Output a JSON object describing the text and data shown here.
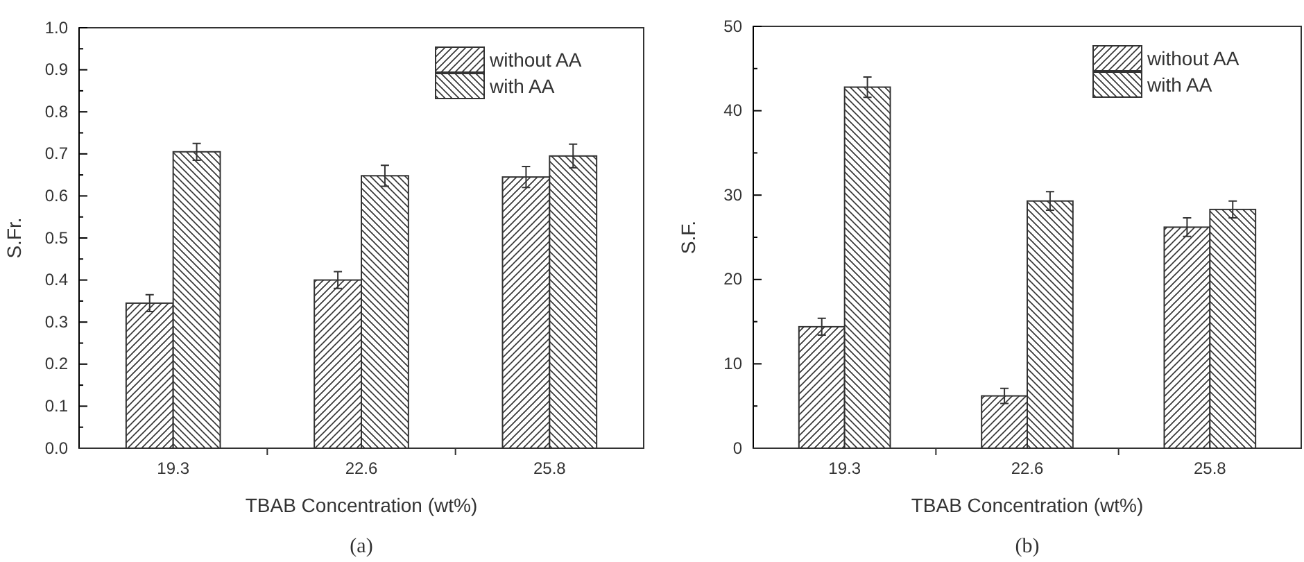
{
  "chart_data": [
    {
      "type": "bar",
      "xlabel": "TBAB Concentration (wt%)",
      "ylabel": "S.Fr.",
      "categories": [
        "19.3",
        "22.6",
        "25.8"
      ],
      "ylim": [
        0,
        1
      ],
      "yticks": [
        {
          "value": 0,
          "label": "0.0"
        },
        {
          "value": 0.05,
          "label": null
        },
        {
          "value": 0.1,
          "label": "0.1"
        },
        {
          "value": 0.15,
          "label": null
        },
        {
          "value": 0.2,
          "label": "0.2"
        },
        {
          "value": 0.25,
          "label": null
        },
        {
          "value": 0.3,
          "label": "0.3"
        },
        {
          "value": 0.35,
          "label": null
        },
        {
          "value": 0.4,
          "label": "0.4"
        },
        {
          "value": 0.45,
          "label": null
        },
        {
          "value": 0.5,
          "label": "0.5"
        },
        {
          "value": 0.55,
          "label": null
        },
        {
          "value": 0.6,
          "label": "0.6"
        },
        {
          "value": 0.65,
          "label": null
        },
        {
          "value": 0.7,
          "label": "0.7"
        },
        {
          "value": 0.75,
          "label": null
        },
        {
          "value": 0.8,
          "label": "0.8"
        },
        {
          "value": 0.85,
          "label": null
        },
        {
          "value": 0.9,
          "label": "0.9"
        },
        {
          "value": 0.95,
          "label": null
        },
        {
          "value": 1,
          "label": "1.0"
        }
      ],
      "legend": "top right",
      "grid": false,
      "annotations": [
        "(a)"
      ],
      "series": [
        {
          "name": "without AA",
          "color": "#333333",
          "values": [
            0.345,
            0.4,
            0.645
          ],
          "errors": [
            0.02,
            0.02,
            0.025
          ]
        },
        {
          "name": "with AA",
          "color": "#333333",
          "values": [
            0.705,
            0.648,
            0.695
          ],
          "errors": [
            0.02,
            0.025,
            0.028
          ]
        }
      ]
    },
    {
      "type": "bar",
      "xlabel": "TBAB Concentration (wt%)",
      "ylabel": "S.F.",
      "categories": [
        "19.3",
        "22.6",
        "25.8"
      ],
      "ylim": [
        0,
        50
      ],
      "yticks": [
        0,
        {
          "value": 5,
          "label": null
        },
        10,
        {
          "value": 15,
          "label": null
        },
        20,
        {
          "value": 25,
          "label": null
        },
        30,
        {
          "value": 35,
          "label": null
        },
        40,
        {
          "value": 45,
          "label": null
        },
        50
      ],
      "legend": "top right",
      "grid": false,
      "annotations": [
        "(b)"
      ],
      "series": [
        {
          "name": "without AA",
          "color": "#333333",
          "values": [
            14.4,
            6.2,
            26.2
          ],
          "errors": [
            1.0,
            0.9,
            1.1
          ]
        },
        {
          "name": "with AA",
          "color": "#333333",
          "values": [
            42.8,
            29.3,
            28.3
          ],
          "errors": [
            1.2,
            1.1,
            1.0
          ]
        }
      ]
    }
  ]
}
